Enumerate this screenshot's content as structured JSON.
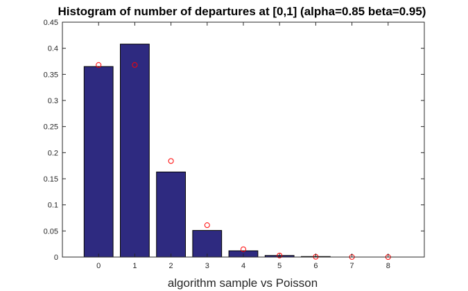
{
  "chart_data": {
    "type": "bar",
    "title": "Histogram of number of departures at [0,1] (alpha=0.85 beta=0.95)",
    "xlabel": "algorithm sample vs Poisson",
    "ylabel": "",
    "categories": [
      "0",
      "1",
      "2",
      "3",
      "4",
      "5",
      "6",
      "7",
      "8"
    ],
    "x_ticks": [
      "0",
      "1",
      "2",
      "3",
      "4",
      "5",
      "6",
      "7",
      "8"
    ],
    "y_ticks": [
      "0",
      "0.05",
      "0.1",
      "0.15",
      "0.2",
      "0.25",
      "0.3",
      "0.35",
      "0.4",
      "0.45"
    ],
    "xlim": [
      -1,
      9
    ],
    "ylim": [
      0,
      0.45
    ],
    "grid": false,
    "series": [
      {
        "kind": "bar",
        "color": "#2e2a80",
        "values": [
          0.365,
          0.408,
          0.163,
          0.051,
          0.012,
          0.003,
          0.001,
          0.0,
          0.0
        ]
      },
      {
        "kind": "scatter",
        "marker": "circle-open",
        "color": "#ff0000",
        "values": [
          0.368,
          0.368,
          0.184,
          0.061,
          0.015,
          0.003,
          0.0005,
          0.0001,
          0.0
        ]
      }
    ]
  }
}
